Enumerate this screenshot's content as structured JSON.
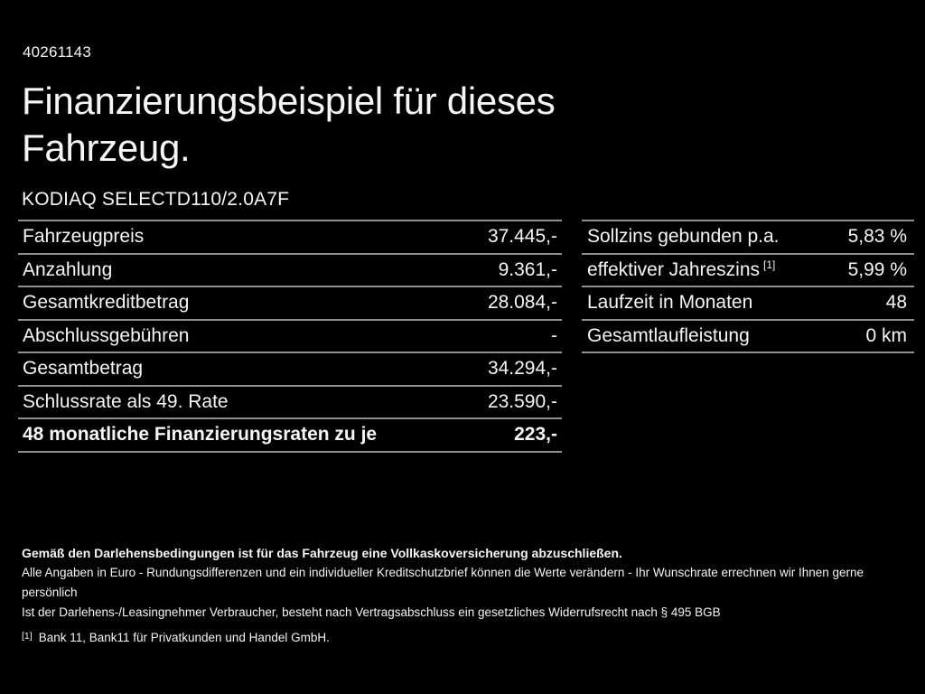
{
  "colors": {
    "background": "#000000",
    "text": "#f5f5f5",
    "line": "#8f8f8f"
  },
  "header": {
    "document_id": "40261143",
    "title": "Finanzierungsbeispiel für dieses Fahrzeug.",
    "vehicle_model": "KODIAQ SELECTD110/2.0A7F"
  },
  "financing_table": {
    "rows": [
      {
        "label": "Fahrzeugpreis",
        "value": "37.445,-"
      },
      {
        "label": "Anzahlung",
        "value": "9.361,-"
      },
      {
        "label": "Gesamtkreditbetrag",
        "value": "28.084,-"
      },
      {
        "label": "Abschlussgebühren",
        "value": "-"
      },
      {
        "label": "Gesamtbetrag",
        "value": "34.294,-"
      },
      {
        "label": "Schlussrate als 49. Rate",
        "value": "23.590,-"
      },
      {
        "label": "48 monatliche Finanzierungsraten zu je",
        "value": "223,-"
      }
    ]
  },
  "conditions_table": {
    "rows": [
      {
        "label": "Sollzins gebunden p.a.",
        "value": "5,83 %"
      },
      {
        "label": "effektiver Jahreszins",
        "footnote_marker": "[1]",
        "value": "5,99 %"
      },
      {
        "label": "Laufzeit in Monaten",
        "value": "48"
      },
      {
        "label": "Gesamtlaufleistung",
        "value": "0 km"
      }
    ]
  },
  "footer": {
    "insurance_note": "Gemäß den Darlehensbedingungen ist für das Fahrzeug eine Vollkaskoversicherung abzuschließen.",
    "disclaimer_line1": "Alle Angaben in Euro - Rundungsdifferenzen und ein individueller Kreditschutzbrief können die Werte verändern - Ihr Wunschrate errechnen wir Ihnen gerne persönlich",
    "disclaimer_line2": "Ist der Darlehens-/Leasingnehmer Verbraucher, besteht nach Vertragsabschluss ein gesetzliches Widerrufsrecht nach § 495 BGB",
    "footnote_marker": "[1]",
    "footnote_text": "Bank 11, Bank11 für Privatkunden und Handel GmbH."
  }
}
